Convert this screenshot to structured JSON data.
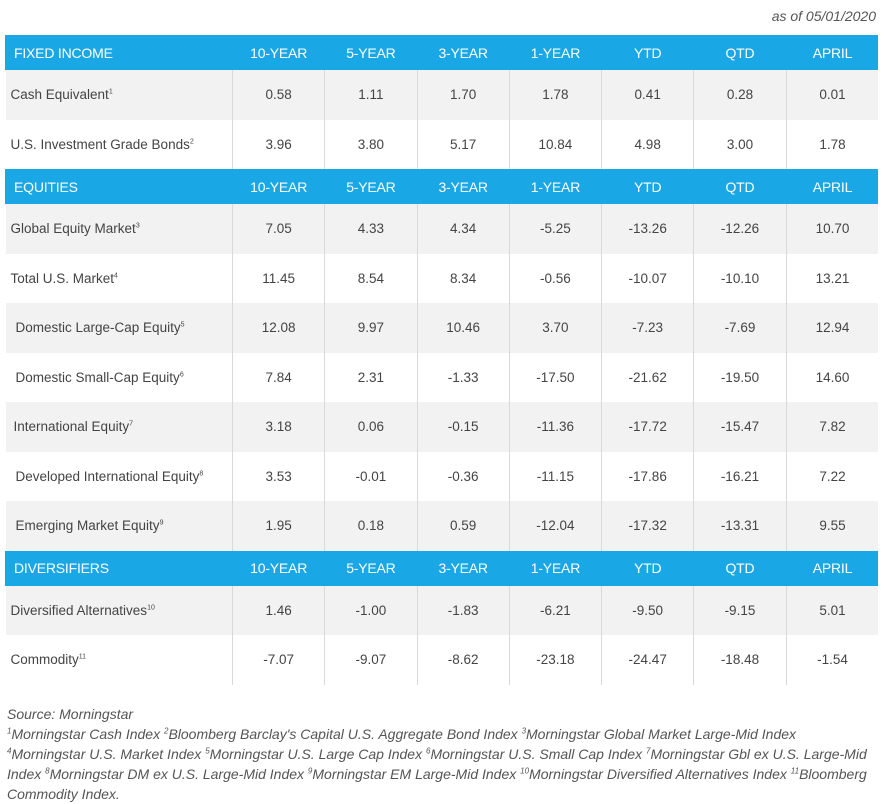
{
  "as_of": "as of 05/01/2020",
  "columns": [
    "10-YEAR",
    "5-YEAR",
    "3-YEAR",
    "1-YEAR",
    "YTD",
    "QTD",
    "APRIL"
  ],
  "sections": [
    {
      "title": "FIXED INCOME",
      "rows": [
        {
          "label": "Cash Equivalent",
          "note": "1",
          "values": [
            "0.58",
            "1.11",
            "1.70",
            "1.78",
            "0.41",
            "0.28",
            "0.01"
          ]
        },
        {
          "label": "U.S. Investment Grade Bonds",
          "note": "2",
          "values": [
            "3.96",
            "3.80",
            "5.17",
            "10.84",
            "4.98",
            "3.00",
            "1.78"
          ]
        }
      ]
    },
    {
      "title": "EQUITIES",
      "rows": [
        {
          "label": "Global Equity Market",
          "note": "3",
          "values": [
            "7.05",
            "4.33",
            "4.34",
            "-5.25",
            "-13.26",
            "-12.26",
            "10.70"
          ]
        },
        {
          "label": "Total U.S. Market",
          "note": "4",
          "values": [
            "11.45",
            "8.54",
            "8.34",
            "-0.56",
            "-10.07",
            "-10.10",
            "13.21"
          ]
        },
        {
          "label": "Domestic Large-Cap Equity",
          "note": "5",
          "values": [
            "12.08",
            "9.97",
            "10.46",
            "3.70",
            "-7.23",
            "-7.69",
            "12.94"
          ]
        },
        {
          "label": "Domestic Small-Cap Equity",
          "note": "6",
          "values": [
            "7.84",
            "2.31",
            "-1.33",
            "-17.50",
            "-21.62",
            "-19.50",
            "14.60"
          ]
        },
        {
          "label": "International Equity",
          "note": "7",
          "values": [
            "3.18",
            "0.06",
            "-0.15",
            "-11.36",
            "-17.72",
            "-15.47",
            "7.82"
          ]
        },
        {
          "label": "Developed International Equity",
          "note": "8",
          "values": [
            "3.53",
            "-0.01",
            "-0.36",
            "-11.15",
            "-17.86",
            "-16.21",
            "7.22"
          ]
        },
        {
          "label": "Emerging Market Equity",
          "note": "9",
          "values": [
            "1.95",
            "0.18",
            "0.59",
            "-12.04",
            "-17.32",
            "-13.31",
            "9.55"
          ]
        }
      ]
    },
    {
      "title": "DIVERSIFIERS",
      "rows": [
        {
          "label": "Diversified Alternatives",
          "note": "10",
          "values": [
            "1.46",
            "-1.00",
            "-1.83",
            "-6.21",
            "-9.50",
            "-9.15",
            "5.01"
          ]
        },
        {
          "label": "Commodity",
          "note": "11",
          "values": [
            "-7.07",
            "-9.07",
            "-8.62",
            "-23.18",
            "-24.47",
            "-18.48",
            "-1.54"
          ]
        }
      ]
    }
  ],
  "source": "Source: Morningstar",
  "footnotes": [
    {
      "n": "1",
      "text": "Morningstar Cash Index "
    },
    {
      "n": "2",
      "text": "Bloomberg Barclay's Capital U.S. Aggregate Bond Index "
    },
    {
      "n": "3",
      "text": "Morningstar Global Market Large-Mid Index "
    },
    {
      "n": "4",
      "text": "Morningstar U.S. Market Index "
    },
    {
      "n": "5",
      "text": "Morningstar U.S. Large Cap Index "
    },
    {
      "n": "6",
      "text": "Morningstar U.S. Small Cap Index "
    },
    {
      "n": "7",
      "text": "Morningstar Gbl ex U.S. Large-Mid Index "
    },
    {
      "n": "8",
      "text": "Morningstar DM ex U.S. Large-Mid Index "
    },
    {
      "n": "9",
      "text": "Morningstar EM Large-Mid Index "
    },
    {
      "n": "10",
      "text": "Morningstar Diversified Alternatives Index "
    },
    {
      "n": "11",
      "text": "Bloomberg Commodity Index."
    }
  ]
}
